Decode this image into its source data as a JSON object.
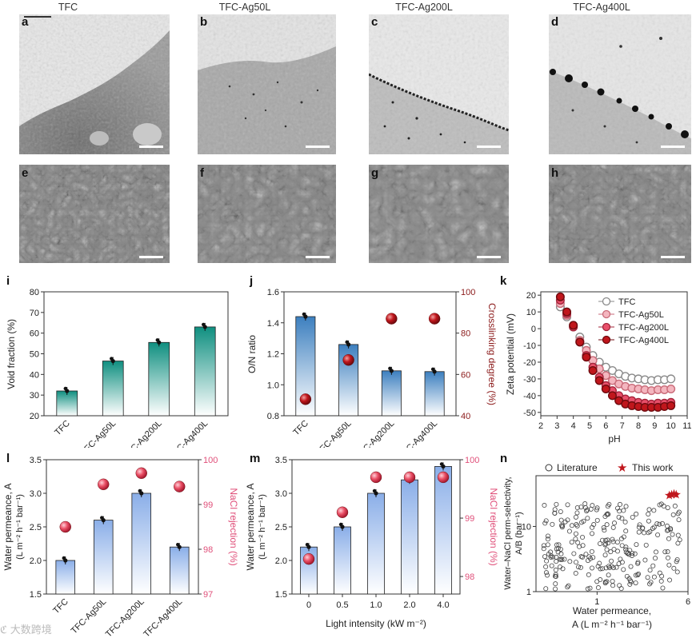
{
  "columns": [
    "TFC",
    "TFC-Ag50L",
    "TFC-Ag200L",
    "TFC-Ag400L"
  ],
  "panel_labels": {
    "a": "a",
    "b": "b",
    "c": "c",
    "d": "d",
    "e": "e",
    "f": "f",
    "g": "g",
    "h": "h",
    "i": "i",
    "j": "j",
    "k": "k",
    "l": "l",
    "m": "m",
    "n": "n"
  },
  "watermark": "大数跨境",
  "colors": {
    "teal": "#0f8f80",
    "blue": "#3c7fbf",
    "red": "#c0161c",
    "pink": "#e0507a",
    "gray": "#8a8a8a"
  },
  "chart_data": [
    {
      "id": "i",
      "type": "bar",
      "categories": [
        "TFC",
        "TFC-Ag50L",
        "TFC-Ag200L",
        "TFC-Ag400L"
      ],
      "values": [
        32,
        46.5,
        55.5,
        63
      ],
      "ylabel": "Void fraction (%)",
      "ylim": [
        20,
        80
      ],
      "yticks": [
        "20",
        "30",
        "40",
        "50",
        "60",
        "70",
        "80"
      ]
    },
    {
      "id": "j",
      "type": "bar",
      "categories": [
        "TFC",
        "TFC-Ag50L",
        "TFC-Ag200L",
        "TFC-Ag400L"
      ],
      "values": [
        1.44,
        1.26,
        1.09,
        1.085
      ],
      "secondary_values": [
        48,
        67,
        87,
        87
      ],
      "ylabel": "O/N ratio",
      "ylim": [
        0.8,
        1.6
      ],
      "yticks": [
        "0.8",
        "1.0",
        "1.2",
        "1.4",
        "1.6"
      ],
      "y2label": "Crosslinking degree (%)",
      "y2lim": [
        40,
        100
      ],
      "y2ticks": [
        "40",
        "60",
        "80",
        "100"
      ]
    },
    {
      "id": "k",
      "type": "scatter",
      "xlabel": "pH",
      "ylabel": "Zeta potential (mV)",
      "xlim": [
        2,
        11
      ],
      "ylim": [
        -52,
        22
      ],
      "xticks": [
        "2",
        "3",
        "4",
        "5",
        "6",
        "7",
        "8",
        "9",
        "10",
        "11"
      ],
      "yticks": [
        "20",
        "10",
        "0",
        "-10",
        "-20",
        "-30",
        "-40",
        "-50"
      ],
      "x": [
        3.2,
        3.6,
        4.0,
        4.4,
        4.8,
        5.2,
        5.6,
        6.0,
        6.4,
        6.8,
        7.2,
        7.6,
        8.0,
        8.4,
        8.8,
        9.2,
        9.6,
        10.0
      ],
      "series": [
        {
          "name": "TFC",
          "values": [
            13,
            7,
            2,
            -5,
            -11,
            -16,
            -20,
            -23,
            -25,
            -27,
            -28.5,
            -29.5,
            -30,
            -30.5,
            -31,
            -30.5,
            -30.5,
            -30
          ]
        },
        {
          "name": "TFC-Ag50L",
          "values": [
            15,
            8,
            1,
            -7,
            -13,
            -19,
            -24,
            -28,
            -31,
            -33,
            -34.5,
            -35.5,
            -36,
            -36.5,
            -37,
            -36.5,
            -36.5,
            -36
          ]
        },
        {
          "name": "TFC-Ag200L",
          "values": [
            17,
            9,
            1,
            -8,
            -16,
            -23,
            -29,
            -34,
            -37,
            -40,
            -42,
            -43,
            -44,
            -44.5,
            -45,
            -44.5,
            -44.5,
            -44
          ]
        },
        {
          "name": "TFC-Ag400L",
          "values": [
            19,
            10,
            2,
            -8,
            -17,
            -25,
            -31,
            -36,
            -40,
            -43,
            -45,
            -46,
            -46.5,
            -47,
            -47,
            -47,
            -46.5,
            -46
          ]
        }
      ]
    },
    {
      "id": "l",
      "type": "bar",
      "categories": [
        "TFC",
        "TFC-Ag50L",
        "TFC-Ag200L",
        "TFC-Ag400L"
      ],
      "values": [
        2.0,
        2.6,
        3.0,
        2.2
      ],
      "secondary_values": [
        98.5,
        99.45,
        99.7,
        99.4
      ],
      "ylabel": "Water permeance, A",
      "ylabel2": "(L m⁻² h⁻¹ bar⁻¹)",
      "ylim": [
        1.5,
        3.5
      ],
      "yticks": [
        "1.5",
        "2.0",
        "2.5",
        "3.0",
        "3.5"
      ],
      "y2label": "NaCl rejection (%)",
      "y2lim": [
        97,
        100
      ],
      "y2ticks": [
        "97",
        "98",
        "99",
        "100"
      ]
    },
    {
      "id": "m",
      "type": "bar",
      "categories": [
        "0",
        "0.5",
        "1.0",
        "2.0",
        "4.0"
      ],
      "values": [
        2.2,
        2.5,
        3.0,
        3.2,
        3.4
      ],
      "secondary_values": [
        98.3,
        99.1,
        99.7,
        99.7,
        99.7
      ],
      "xlabel": "Light intensity (kW m⁻²)",
      "ylabel": "Water permeance, A",
      "ylabel2": "(L m⁻² h⁻¹ bar⁻¹)",
      "ylim": [
        1.5,
        3.5
      ],
      "yticks": [
        "1.5",
        "2.0",
        "2.5",
        "3.0",
        "3.5"
      ],
      "y2label": "NaCl rejection (%)",
      "y2lim": [
        97.7,
        100
      ],
      "y2ticks": [
        "98",
        "99",
        "100"
      ]
    },
    {
      "id": "n",
      "type": "scatter",
      "legend": [
        "Literature",
        "This work"
      ],
      "xlabel": "Water permeance,",
      "xlabel2": "A (L m⁻² h⁻¹ bar⁻¹)",
      "ylabel": "Water–NaCl perm-selectivity,",
      "ylabel2": "A/B (bar⁻¹)",
      "xticks": [
        "1",
        "6"
      ],
      "yticks": [
        "1",
        "10"
      ],
      "this_work": [
        [
          4.1,
          30
        ],
        [
          4.3,
          31
        ],
        [
          4.5,
          32
        ],
        [
          4.7,
          31
        ]
      ]
    }
  ]
}
